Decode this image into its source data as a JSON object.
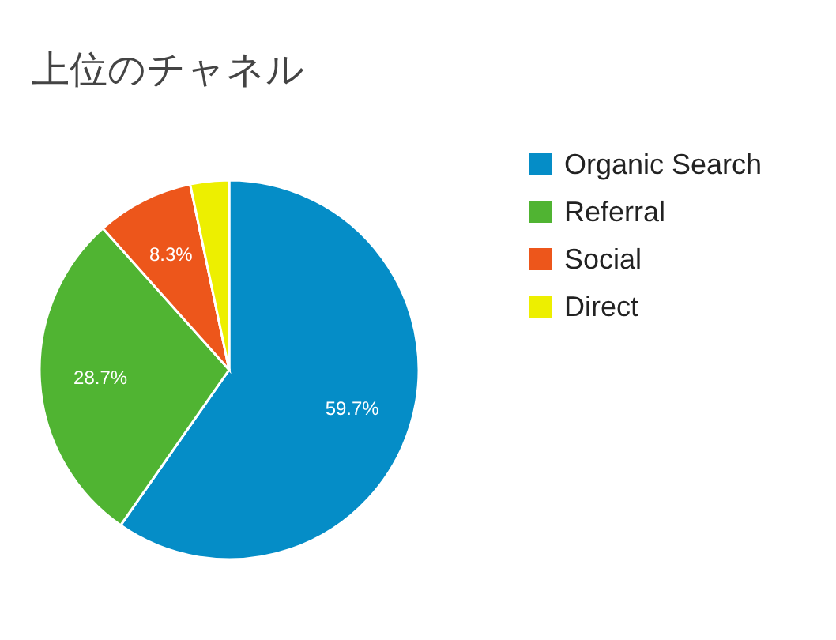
{
  "chart_data": {
    "type": "pie",
    "title": "上位のチャネル",
    "categories": [
      "Organic Search",
      "Referral",
      "Social",
      "Direct"
    ],
    "values": [
      59.7,
      28.7,
      8.3,
      3.3
    ],
    "colors": [
      "#058dc7",
      "#50b432",
      "#ed561b",
      "#edef00"
    ],
    "value_labels": [
      "59.7%",
      "28.7%",
      "8.3%",
      null
    ],
    "legend": "top right"
  }
}
